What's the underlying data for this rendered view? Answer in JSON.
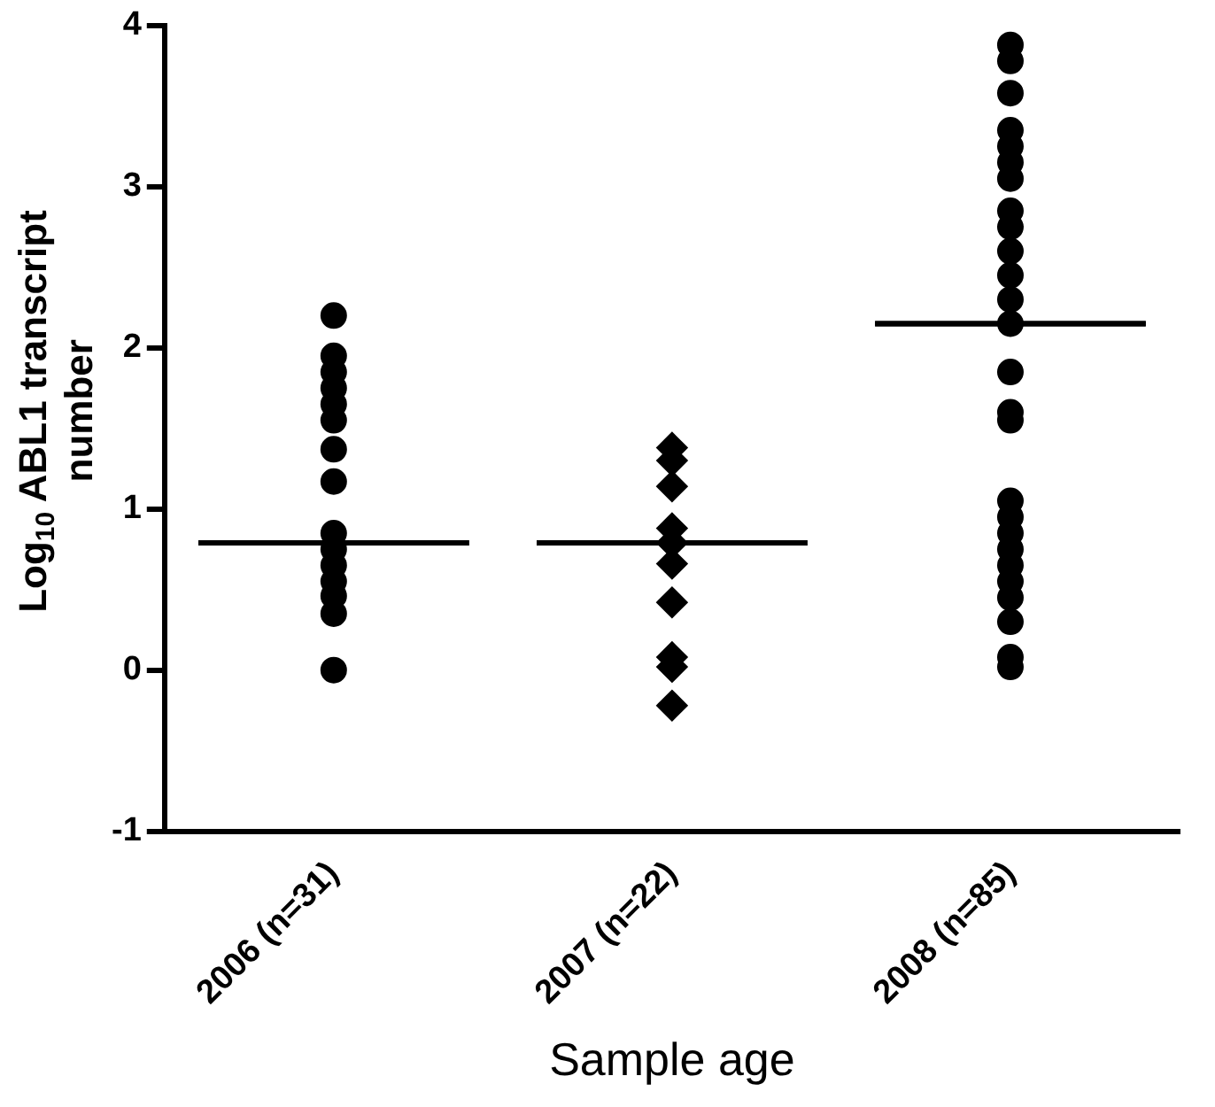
{
  "chart_data": {
    "type": "scatter",
    "xlabel": "Sample age",
    "ylabel": "Log$_{10}$ ABL1 transcript number",
    "categories": [
      "2006 (n=31)",
      "2007 (n=22)",
      "2008 (n=85)"
    ],
    "ylim": [
      -1,
      4
    ],
    "yticks": [
      -1,
      0,
      1,
      2,
      3,
      4
    ],
    "grid": false,
    "legend": false,
    "series": [
      {
        "type": "scatter",
        "marker": "circle",
        "color": "#000000",
        "x": [
          "2006 (n=31)",
          "2006 (n=31)",
          "2006 (n=31)",
          "2006 (n=31)",
          "2006 (n=31)",
          "2006 (n=31)",
          "2006 (n=31)",
          "2006 (n=31)",
          "2006 (n=31)",
          "2006 (n=31)",
          "2006 (n=31)",
          "2006 (n=31)",
          "2006 (n=31)",
          "2006 (n=31)",
          "2006 (n=31)"
        ],
        "values": [
          2.2,
          1.95,
          1.85,
          1.75,
          1.65,
          1.55,
          1.37,
          1.17,
          0.85,
          0.75,
          0.65,
          0.55,
          0.46,
          0.35,
          0
        ]
      },
      {
        "type": "scatter",
        "marker": "diamond",
        "color": "#000000",
        "x": [
          "2007 (n=22)",
          "2007 (n=22)",
          "2007 (n=22)",
          "2007 (n=22)",
          "2007 (n=22)",
          "2007 (n=22)",
          "2007 (n=22)",
          "2007 (n=22)",
          "2007 (n=22)",
          "2007 (n=22)"
        ],
        "values": [
          1.38,
          1.3,
          1.14,
          0.88,
          0.79,
          0.66,
          0.42,
          0.08,
          0.02,
          -0.22
        ]
      },
      {
        "type": "scatter",
        "marker": "circle",
        "color": "#000000",
        "x": [
          "2008 (n=85)",
          "2008 (n=85)",
          "2008 (n=85)",
          "2008 (n=85)",
          "2008 (n=85)",
          "2008 (n=85)",
          "2008 (n=85)",
          "2008 (n=85)",
          "2008 (n=85)",
          "2008 (n=85)",
          "2008 (n=85)",
          "2008 (n=85)",
          "2008 (n=85)",
          "2008 (n=85)",
          "2008 (n=85)",
          "2008 (n=85)",
          "2008 (n=85)",
          "2008 (n=85)",
          "2008 (n=85)",
          "2008 (n=85)",
          "2008 (n=85)",
          "2008 (n=85)",
          "2008 (n=85)",
          "2008 (n=85)",
          "2008 (n=85)",
          "2008 (n=85)"
        ],
        "values": [
          3.88,
          3.78,
          3.58,
          3.35,
          3.25,
          3.15,
          3.05,
          2.85,
          2.75,
          2.6,
          2.45,
          2.3,
          2.15,
          1.85,
          1.6,
          1.55,
          1.05,
          0.95,
          0.85,
          0.75,
          0.65,
          0.55,
          0.45,
          0.3,
          0.08,
          0.02
        ]
      },
      {
        "type": "box",
        "color": "#000000",
        "boxes": [
          {
            "low": 0.79,
            "q1": 0.79,
            "median": 0.79,
            "q3": 0.79,
            "high": 0.79
          },
          {
            "low": 0.79,
            "q1": 0.79,
            "median": 0.79,
            "q3": 0.79,
            "high": 0.79
          },
          {
            "low": 2.15,
            "q1": 2.15,
            "median": 2.15,
            "q3": 2.15,
            "high": 2.15
          }
        ]
      }
    ]
  }
}
